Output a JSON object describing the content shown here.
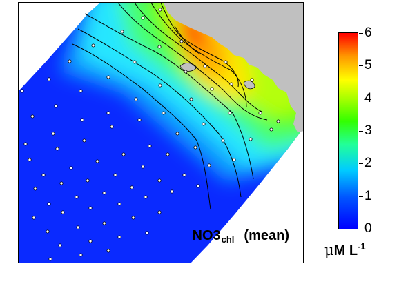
{
  "map": {
    "label_main": "NO3",
    "label_sub": "chl",
    "label_suffix": "(mean)",
    "land_color": "#c0c0c0",
    "station_markers": true,
    "contour_lines": true
  },
  "colorbar": {
    "ticks": [
      "6",
      "5",
      "4",
      "3",
      "2",
      "1",
      "0"
    ],
    "unit_mu": "μ",
    "unit_main": "M L",
    "unit_exp": "-1",
    "min": 0,
    "max": 6,
    "colors": [
      "#0000ff",
      "#00ccff",
      "#33ff00",
      "#ffff00",
      "#ff0000"
    ]
  }
}
